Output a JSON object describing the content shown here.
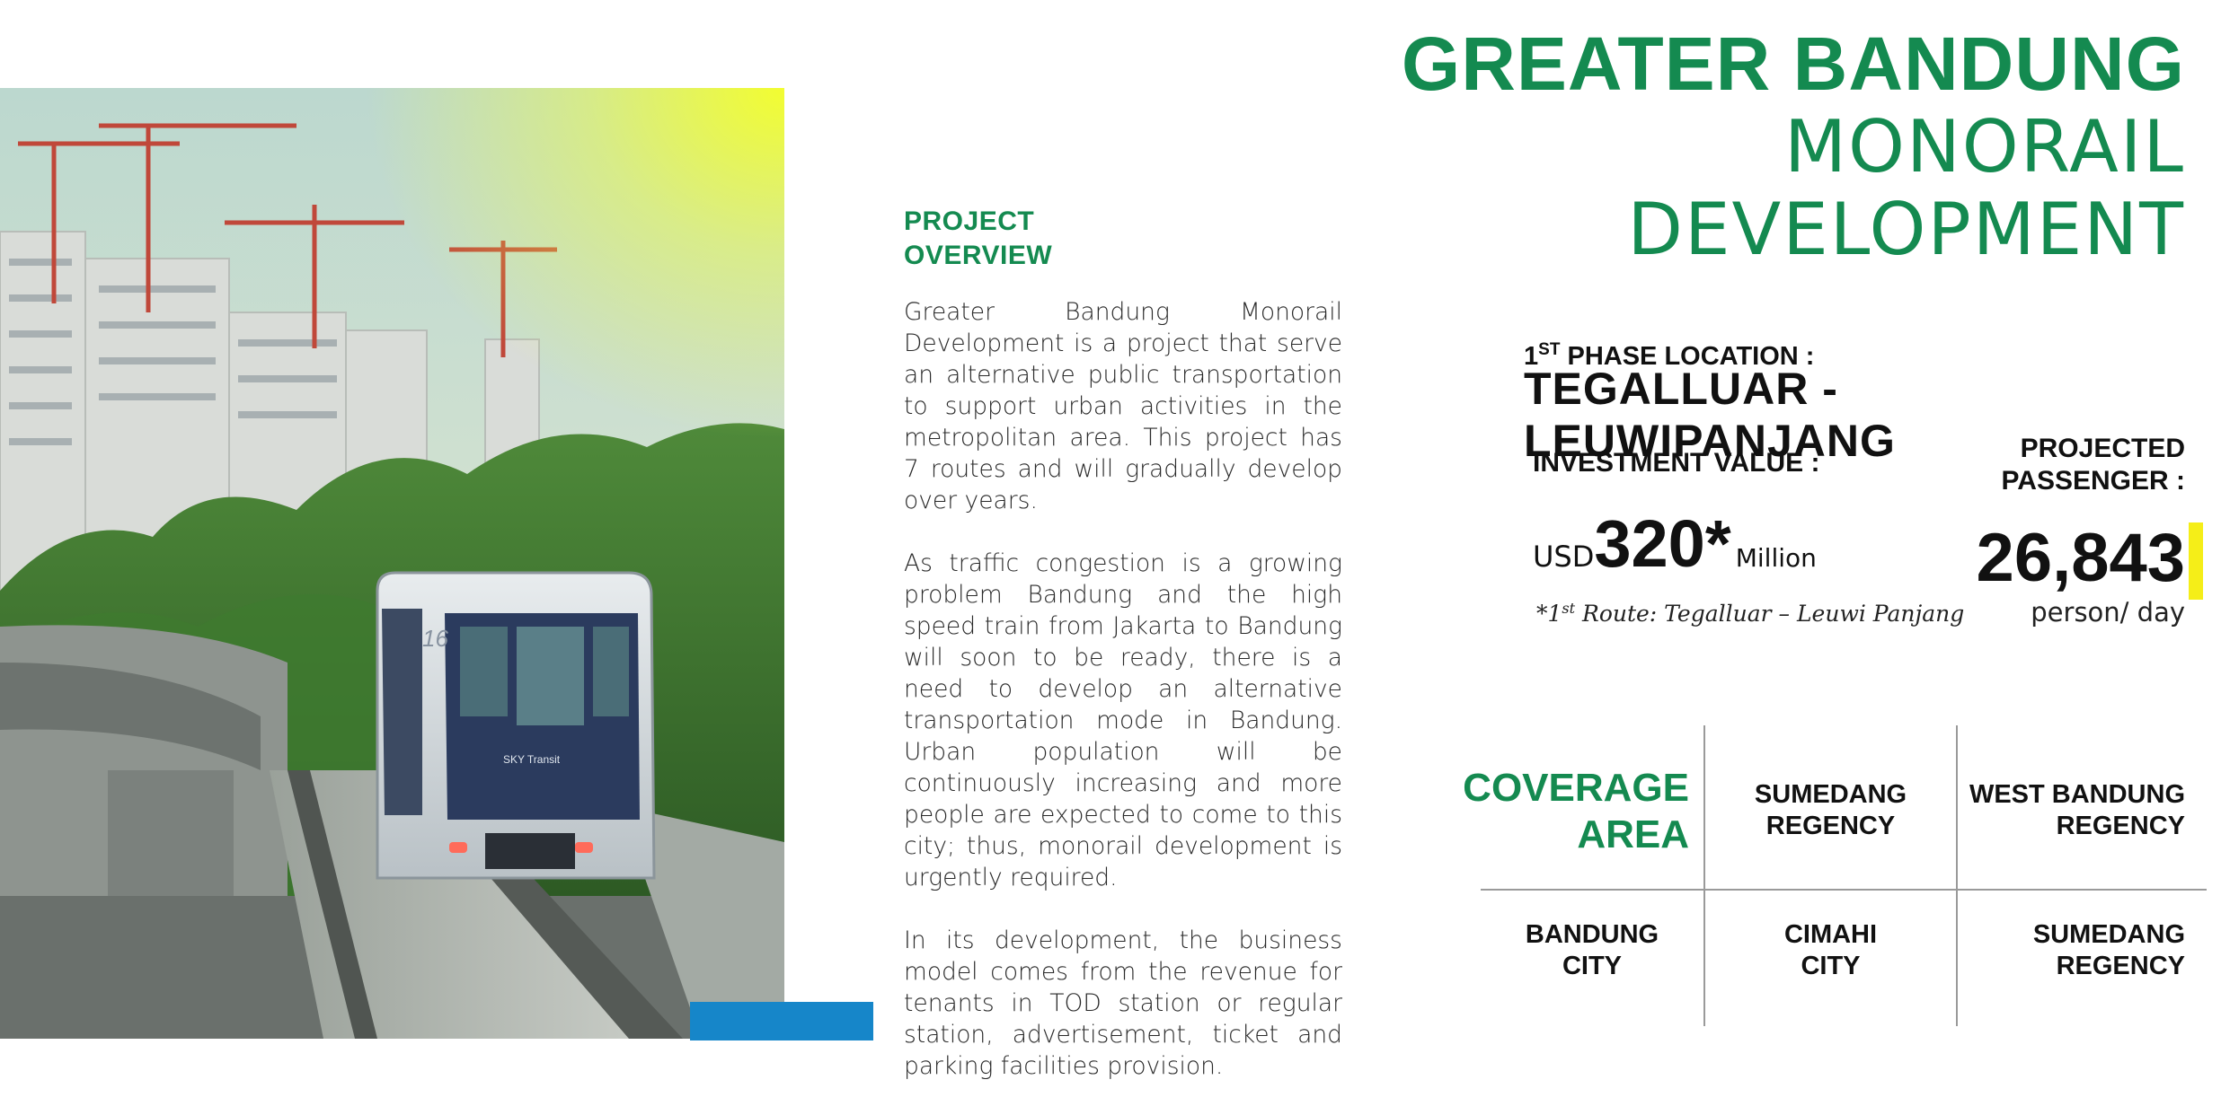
{
  "title": {
    "line1": "GREATER BANDUNG",
    "line2": "MONORAIL",
    "line3": "DEVELOPMENT"
  },
  "overview": {
    "heading_line1": "PROJECT",
    "heading_line2": "OVERVIEW",
    "paragraphs": [
      "Greater Bandung Monorail Development is a project that serve an alternative public transportation to support urban activities in the metropolitan area. This project has 7 routes and will gradually develop over years.",
      "As traffic congestion is a growing problem Bandung and the high speed train from Jakarta to Bandung will soon to be ready, there is a need to develop an alternative transportation mode in Bandung. Urban population will be continuously increasing and more people are expected to come to this city; thus, monorail development is urgently required.",
      "In its development, the business model comes from the revenue for tenants in TOD station or regular station, advertisement, ticket and parking facilities provision."
    ]
  },
  "phase": {
    "label_num": "1",
    "label_sup": "ST",
    "label_rest": " PHASE LOCATION :",
    "value": "TEGALLUAR - LEUWIPANJANG"
  },
  "investment": {
    "label": "INVESTMENT VALUE :",
    "prefix": "USD",
    "value": "320*",
    "suffix": "Million",
    "note_pre": "*1",
    "note_sup": "st",
    "note_post": " Route: Tegalluar – Leuwi Panjang"
  },
  "passenger": {
    "label_line1": "PROJECTED",
    "label_line2": "PASSENGER :",
    "value": "26,843",
    "unit": "person/ day"
  },
  "coverage": {
    "title_line1": "COVERAGE",
    "title_line2": "AREA",
    "cells": [
      {
        "line1": "SUMEDANG",
        "line2": "REGENCY"
      },
      {
        "line1": "WEST BANDUNG",
        "line2": "REGENCY"
      },
      {
        "line1": "BANDUNG",
        "line2": "CITY"
      },
      {
        "line1": "CIMAHI",
        "line2": "CITY"
      },
      {
        "line1": "SUMEDANG",
        "line2": "REGENCY"
      }
    ]
  },
  "photo": {
    "train_number": "16",
    "train_logo": "SKY Transit"
  },
  "colors": {
    "green": "#148a50",
    "blue_bar": "#1686c9",
    "yellow_bar": "#f5ee18"
  }
}
